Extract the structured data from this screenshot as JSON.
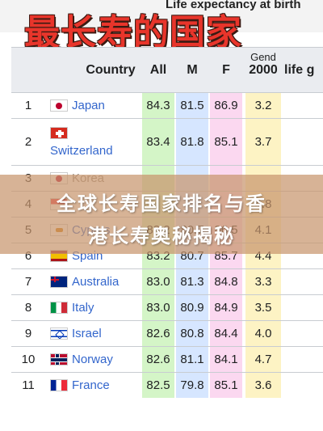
{
  "overlay_title": "最长寿的国家",
  "top_header_text": "Life expectancy at birth",
  "banner": {
    "line1": "全球长寿国家排名与香",
    "line2": "港长寿奥秘揭秘"
  },
  "table": {
    "headers": {
      "country": "Country",
      "all": "All",
      "m": "M",
      "f": "F",
      "gap": "2000",
      "gap_top": "Gend",
      "last": "life g"
    },
    "column_colors": {
      "all": "#d4f5c7",
      "m": "#d6e6ff",
      "f": "#fbd8f0",
      "gap": "#fdf3c4"
    },
    "rows": [
      {
        "rank": "1",
        "country": "Japan",
        "flag": "japan",
        "all": "84.3",
        "m": "81.5",
        "f": "86.9",
        "gap": "3.2"
      },
      {
        "rank": "2",
        "country": "Switzerland",
        "flag": "switzerland",
        "all": "83.4",
        "m": "81.8",
        "f": "85.1",
        "gap": "3.7"
      },
      {
        "rank": "3",
        "country": "Korea",
        "flag": "korea",
        "all": "",
        "m": "",
        "f": "",
        "gap": ""
      },
      {
        "rank": "4",
        "country": "",
        "flag": "singapore",
        "all": "",
        "m": "",
        "f": "",
        "gap": "4.8"
      },
      {
        "rank": "5",
        "country": "Cyprus",
        "flag": "cyprus",
        "all": "83.2",
        "m": "80.7",
        "f": "86.5",
        "gap": "4.1"
      },
      {
        "rank": "6",
        "country": "Spain",
        "flag": "spain",
        "all": "83.2",
        "m": "80.7",
        "f": "85.7",
        "gap": "4.4"
      },
      {
        "rank": "7",
        "country": "Australia",
        "flag": "australia",
        "all": "83.0",
        "m": "81.3",
        "f": "84.8",
        "gap": "3.3"
      },
      {
        "rank": "8",
        "country": "Italy",
        "flag": "italy",
        "all": "83.0",
        "m": "80.9",
        "f": "84.9",
        "gap": "3.5"
      },
      {
        "rank": "9",
        "country": "Israel",
        "flag": "israel",
        "all": "82.6",
        "m": "80.8",
        "f": "84.4",
        "gap": "4.0"
      },
      {
        "rank": "10",
        "country": "Norway",
        "flag": "norway",
        "all": "82.6",
        "m": "81.1",
        "f": "84.1",
        "gap": "4.7"
      },
      {
        "rank": "11",
        "country": "France",
        "flag": "france",
        "all": "82.5",
        "m": "79.8",
        "f": "85.1",
        "gap": "3.6"
      }
    ]
  }
}
